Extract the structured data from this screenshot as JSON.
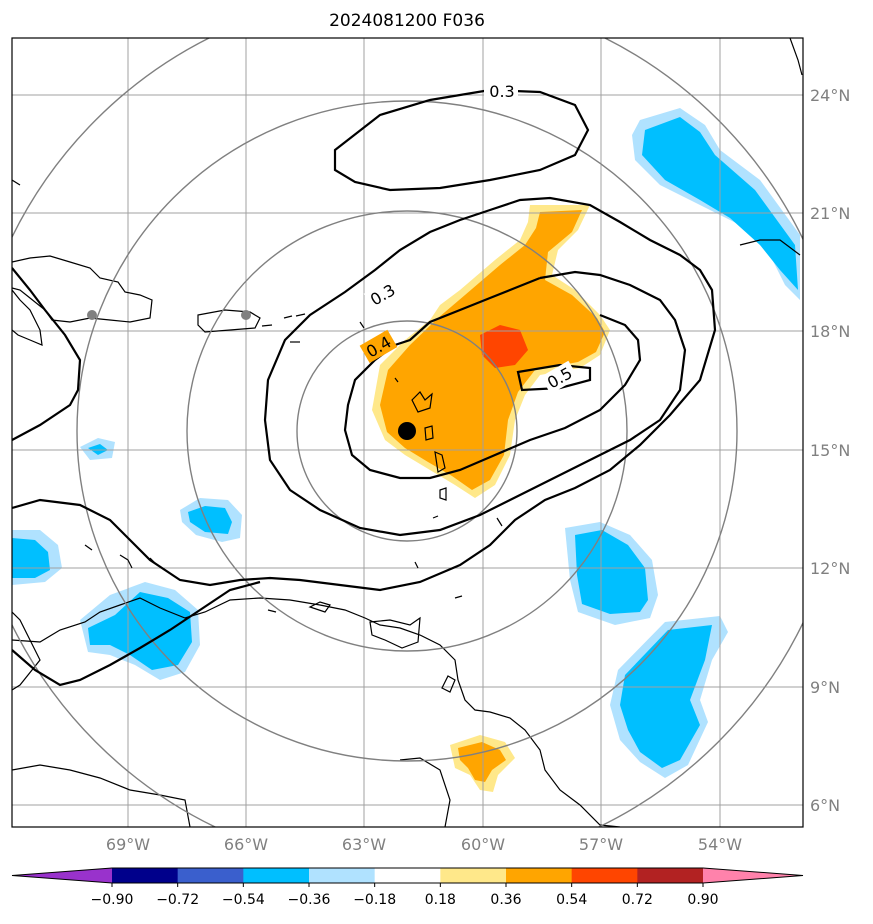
{
  "title": "2024081200 F036",
  "lon_ticks": [
    "69°W",
    "66°W",
    "63°W",
    "60°W",
    "57°W",
    "54°W"
  ],
  "lat_ticks": [
    "24°N",
    "21°N",
    "18°N",
    "15°N",
    "12°N",
    "9°N",
    "6°N"
  ],
  "colorbar": {
    "ticks": [
      "−0.90",
      "−0.72",
      "−0.54",
      "−0.36",
      "−0.18",
      "0.18",
      "0.36",
      "0.54",
      "0.72",
      "0.90"
    ],
    "colors": [
      "#9932cc",
      "#00008b",
      "#3a5fcd",
      "#00bfff",
      "#b0e2ff",
      "#ffffff",
      "#ffe88a",
      "#ffa500",
      "#ff4500",
      "#b22222",
      "#ff82ab"
    ]
  },
  "contour_labels": [
    "0.3",
    "0.3",
    "0.4",
    "0.5"
  ],
  "fill_colors": {
    "light_blue": "#b0e2ff",
    "blue": "#00bfff",
    "light_yellow": "#ffe88a",
    "orange": "#ffa500",
    "red_orange": "#ff4500"
  },
  "grid_color": "#a0a0a0",
  "range_ring_color": "#808080",
  "storm_center_icon": "black-dot-icon",
  "reference_point_icon": "gray-dot-icon"
}
